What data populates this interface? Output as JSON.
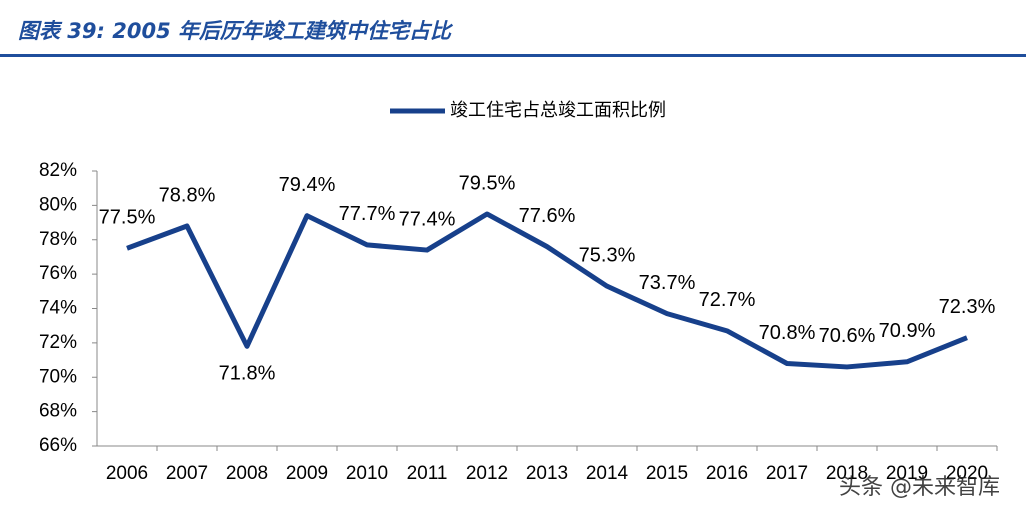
{
  "chart_data": {
    "type": "line",
    "title": "图表 39:  2005 年后历年竣工建筑中住宅占比",
    "watermark": "头条 @未来智库",
    "categories": [
      "2006",
      "2007",
      "2008",
      "2009",
      "2010",
      "2011",
      "2012",
      "2013",
      "2014",
      "2015",
      "2016",
      "2017",
      "2018",
      "2019",
      "2020"
    ],
    "series": [
      {
        "name": "竣工住宅占总竣工面积比例",
        "color": "#17408b",
        "values": [
          77.5,
          78.8,
          71.8,
          79.4,
          77.7,
          77.4,
          79.5,
          77.6,
          75.3,
          73.7,
          72.7,
          70.8,
          70.6,
          70.9,
          72.3
        ],
        "value_labels": [
          "77.5%",
          "78.8%",
          "71.8%",
          "79.4%",
          "77.7%",
          "77.4%",
          "79.5%",
          "77.6%",
          "75.3%",
          "73.7%",
          "72.7%",
          "70.8%",
          "70.6%",
          "70.9%",
          "72.3%"
        ]
      }
    ],
    "ylim": [
      66,
      82
    ],
    "yticks": [
      {
        "value": 66,
        "label": "66%"
      },
      {
        "value": 68,
        "label": "68%"
      },
      {
        "value": 70,
        "label": "70%"
      },
      {
        "value": 72,
        "label": "72%"
      },
      {
        "value": 74,
        "label": "74%"
      },
      {
        "value": 76,
        "label": "76%"
      },
      {
        "value": 78,
        "label": "78%"
      },
      {
        "value": 80,
        "label": "80%"
      },
      {
        "value": 82,
        "label": "82%"
      }
    ],
    "legend": "top"
  }
}
